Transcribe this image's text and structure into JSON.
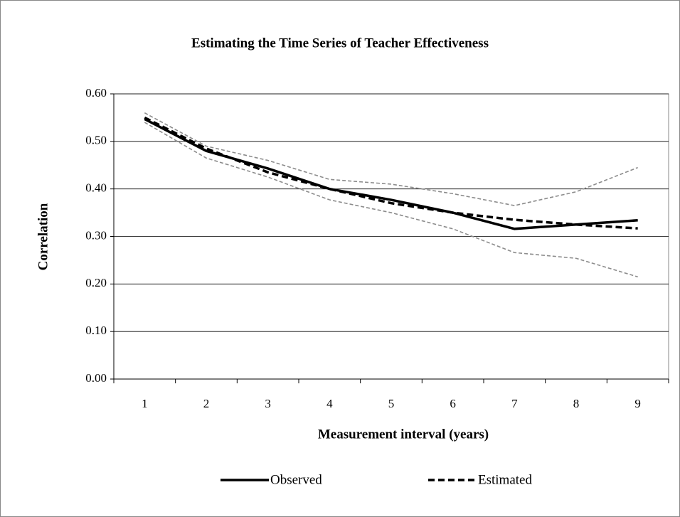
{
  "chart_data": {
    "type": "line",
    "title": "Estimating the Time Series of Teacher Effectiveness",
    "x_label": "Measurement interval (years)",
    "y_label": "Correlation",
    "categories": [
      "1",
      "2",
      "3",
      "4",
      "5",
      "6",
      "7",
      "8",
      "9"
    ],
    "series": [
      {
        "color": "#8c8c8c",
        "linestyle": "dashed",
        "values": [
          0.56,
          0.49,
          0.46,
          0.42,
          0.41,
          0.39,
          0.365,
          0.394,
          0.445
        ]
      },
      {
        "color": "#8c8c8c",
        "linestyle": "dashed",
        "values": [
          0.54,
          0.465,
          0.425,
          0.377,
          0.35,
          0.316,
          0.266,
          0.254,
          0.215
        ]
      },
      {
        "name": "Observed",
        "color": "#000000",
        "linestyle": "solid",
        "values": [
          0.547,
          0.48,
          0.443,
          0.4,
          0.377,
          0.35,
          0.316,
          0.325,
          0.334
        ]
      },
      {
        "name": "Estimated",
        "color": "#000000",
        "linestyle": "dashed",
        "values": [
          0.55,
          0.485,
          0.435,
          0.4,
          0.37,
          0.35,
          0.335,
          0.325,
          0.317
        ]
      }
    ],
    "ylim": [
      0,
      0.6
    ],
    "yticks": [
      {
        "value": 0,
        "label": "0.00"
      },
      {
        "value": 0.1,
        "label": "0.10"
      },
      {
        "value": 0.2,
        "label": "0.20"
      },
      {
        "value": 0.3,
        "label": "0.30"
      },
      {
        "value": 0.4,
        "label": "0.40"
      },
      {
        "value": 0.5,
        "label": "0.50"
      },
      {
        "value": 0.6,
        "label": "0.60"
      }
    ],
    "grid": true,
    "legend": "bottom"
  }
}
